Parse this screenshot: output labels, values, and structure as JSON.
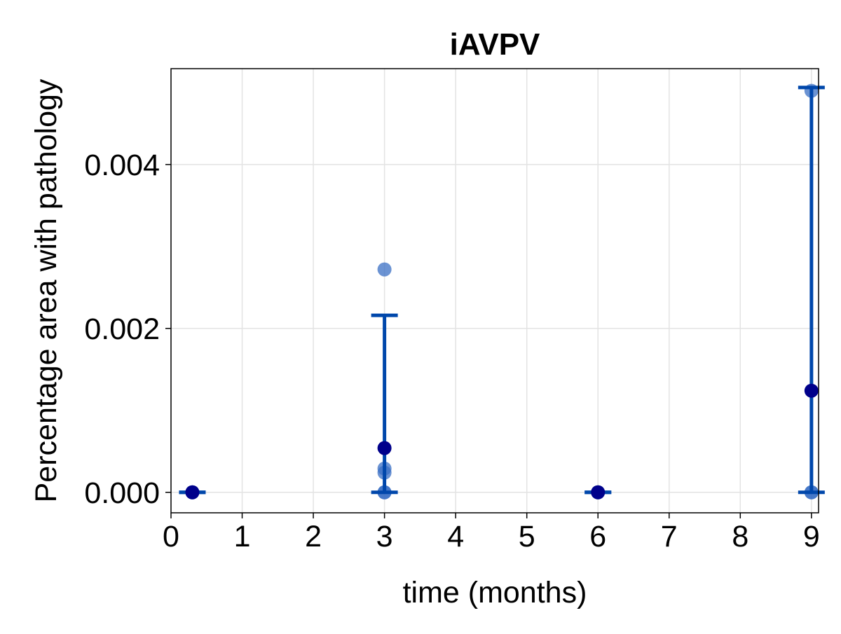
{
  "chart_data": {
    "type": "scatter",
    "title": "iAVPV",
    "xlabel": "time (months)",
    "ylabel": "Percentage area with pathology",
    "xlim": [
      0,
      9.1
    ],
    "ylim": [
      -0.00025,
      0.00517
    ],
    "xticks": [
      0,
      1,
      2,
      3,
      4,
      5,
      6,
      7,
      8,
      9
    ],
    "xtick_labels": [
      "0",
      "1",
      "2",
      "3",
      "4",
      "5",
      "6",
      "7",
      "8",
      "9"
    ],
    "yticks": [
      0.0,
      0.002,
      0.004
    ],
    "ytick_labels": [
      "0.000",
      "0.002",
      "0.004"
    ],
    "grid": true,
    "colors": {
      "points": "#3a6fc4",
      "mean": "#00008b",
      "errorbar": "#0047ab",
      "grid": "#e3e3e3",
      "axis": "#000000"
    },
    "points": [
      {
        "x": 0.3,
        "y": 0.0
      },
      {
        "x": 0.3,
        "y": 0.0
      },
      {
        "x": 3,
        "y": 0.00272
      },
      {
        "x": 3,
        "y": 0.00029
      },
      {
        "x": 3,
        "y": 0.00024
      },
      {
        "x": 3,
        "y": 0.0
      },
      {
        "x": 3,
        "y": 0.0
      },
      {
        "x": 6,
        "y": 0.0
      },
      {
        "x": 6,
        "y": 0.0
      },
      {
        "x": 9,
        "y": 0.0049
      },
      {
        "x": 9,
        "y": 0.0
      },
      {
        "x": 9,
        "y": 0.0
      }
    ],
    "means": [
      {
        "x": 0.3,
        "y": 0.0,
        "err_low": 0.0,
        "err_high": 0.0
      },
      {
        "x": 3,
        "y": 0.00054,
        "err_low": 0.00054,
        "err_high": 0.00162
      },
      {
        "x": 6,
        "y": 0.0,
        "err_low": 0.0,
        "err_high": 0.0
      },
      {
        "x": 9,
        "y": 0.00124,
        "err_low": 0.00124,
        "err_high": 0.0037
      }
    ]
  }
}
